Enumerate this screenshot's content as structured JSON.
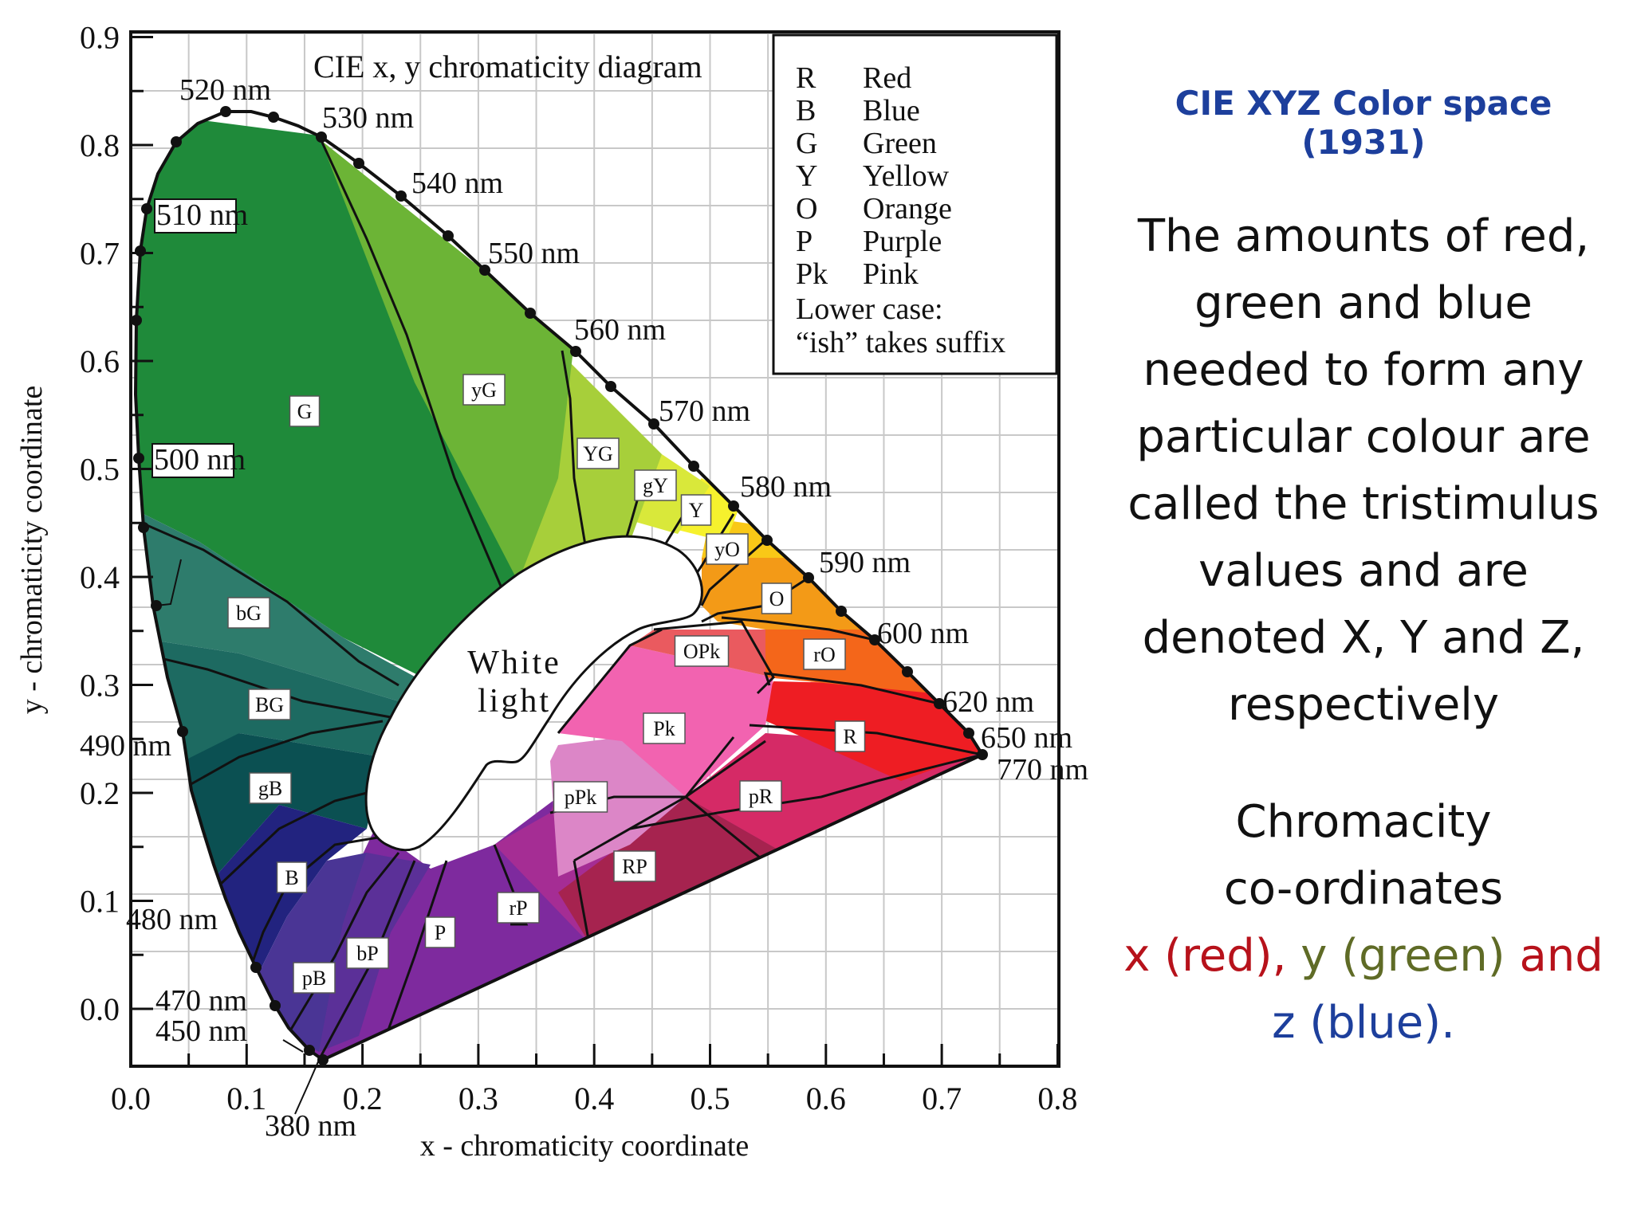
{
  "diagram": {
    "title": "CIE x, y chromaticity diagram",
    "x_axis_label": "x - chromaticity coordinate",
    "y_axis_label": "y - chromaticity coordinate",
    "x_ticks": [
      "0.0",
      "0.1",
      "0.2",
      "0.3",
      "0.4",
      "0.5",
      "0.6",
      "0.7",
      "0.8"
    ],
    "y_ticks": [
      "0.0",
      "0.1",
      "0.2",
      "0.3",
      "0.4",
      "0.5",
      "0.6",
      "0.7",
      "0.8",
      "0.9"
    ],
    "wavelength_labels": [
      "520 nm",
      "530 nm",
      "540 nm",
      "510 nm",
      "550 nm",
      "560 nm",
      "570 nm",
      "500 nm",
      "580 nm",
      "590 nm",
      "600 nm",
      "620 nm",
      "650 nm",
      "770 nm",
      "490 nm",
      "480 nm",
      "470 nm",
      "450 nm",
      "380 nm"
    ],
    "legend": [
      {
        "code": "R",
        "name": "Red"
      },
      {
        "code": "B",
        "name": "Blue"
      },
      {
        "code": "G",
        "name": "Green"
      },
      {
        "code": "Y",
        "name": "Yellow"
      },
      {
        "code": "O",
        "name": "Orange"
      },
      {
        "code": "P",
        "name": "Purple"
      },
      {
        "code": "Pk",
        "name": "Pink"
      }
    ],
    "legend_note_1": "Lower case:",
    "legend_note_2": "“ish” takes suffix",
    "region_labels": [
      "G",
      "yG",
      "YG",
      "gY",
      "Y",
      "yO",
      "O",
      "rO",
      "R",
      "OPk",
      "Pk",
      "pR",
      "RP",
      "pPk",
      "rP",
      "P",
      "bP",
      "pB",
      "B",
      "gB",
      "BG",
      "bG"
    ],
    "white_label_1": "White",
    "white_label_2": "light",
    "colors": {
      "G": "#1f8a3a",
      "yG": "#6cb436",
      "YG": "#a7cf3a",
      "gY": "#d9e83a",
      "Y": "#f6f12d",
      "yO": "#f9c817",
      "O": "#f39a17",
      "rO": "#f4661a",
      "R": "#ee1d23",
      "OPk": "#ea5a5f",
      "Pk": "#f263b0",
      "pR": "#d52a66",
      "RP": "#a6234f",
      "pPk": "#dc86c7",
      "rP": "#a52d94",
      "P": "#7e2a9e",
      "bP": "#5b3098",
      "pB": "#4a3595",
      "B": "#22237f",
      "gB": "#0b5052",
      "BG": "#1d6a61",
      "bG": "#2e7c6c"
    }
  },
  "sidebar": {
    "title": "CIE XYZ Color space (1931)",
    "body": [
      "The amounts of red,",
      "green and blue",
      "needed to form any",
      "particular colour are",
      "called the tristimulus",
      "values and are",
      "denoted X, Y and Z,",
      "respectively"
    ],
    "chroma_line1": "Chromacity",
    "chroma_line2": "co-ordinates",
    "x_part": "x (red),",
    "y_part": "y (green)",
    "and_word": "and",
    "z_part": "z (blue)."
  }
}
